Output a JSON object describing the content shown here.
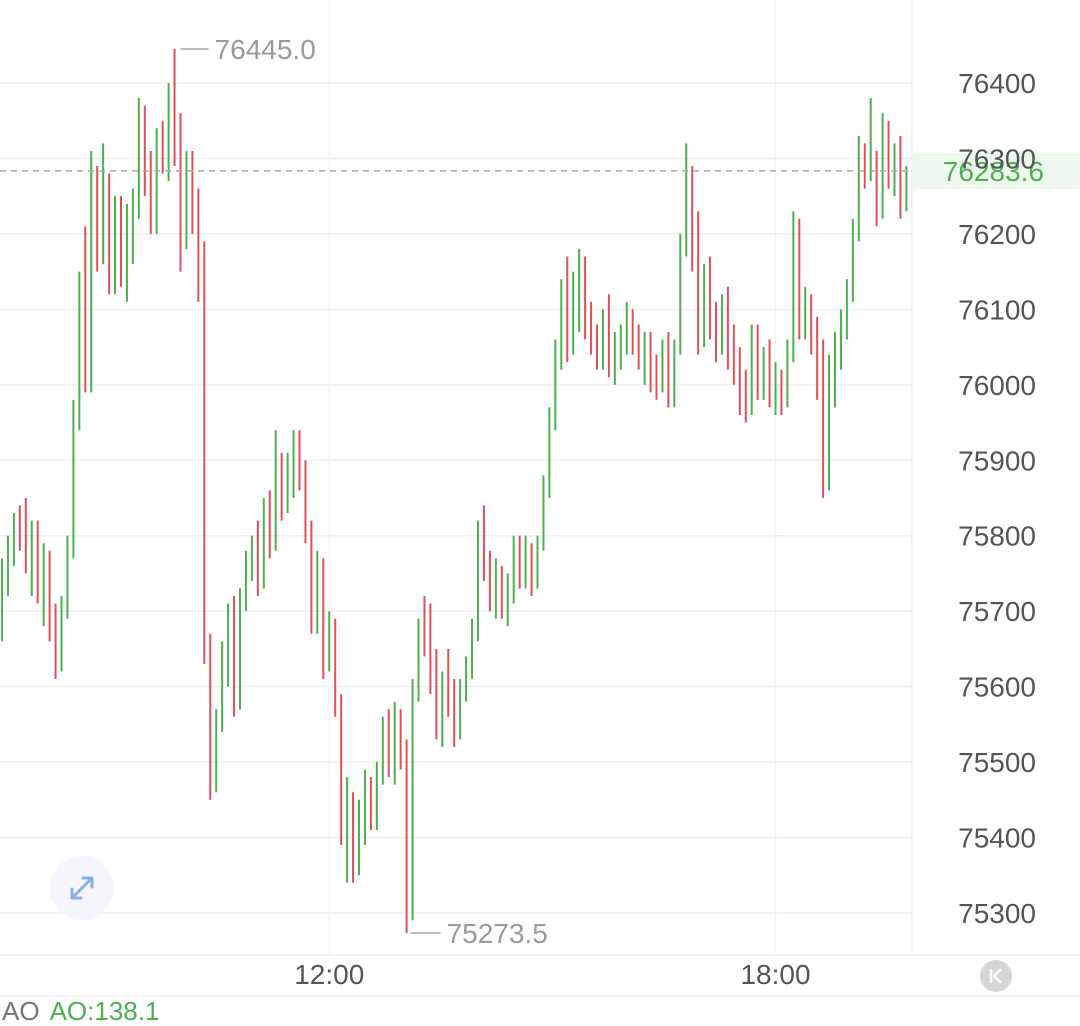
{
  "chart_data": {
    "type": "ohlc",
    "y_ticks": [
      "76400",
      "76300",
      "76200",
      "76100",
      "76000",
      "75900",
      "75800",
      "75700",
      "75600",
      "75500",
      "75400",
      "75300"
    ],
    "x_ticks": [
      {
        "label": "12:00",
        "index": 55
      },
      {
        "label": "18:00",
        "index": 130
      }
    ],
    "ylim": [
      75235,
      76500
    ],
    "high_marker": {
      "label": "76445.0",
      "value": 76445.0
    },
    "low_marker": {
      "label": "75273.5",
      "value": 75273.5
    },
    "last_price": {
      "label": "76283.6",
      "value": 76283.6
    },
    "up_color": "#4caf50",
    "down_color": "#e0505a",
    "candles": [
      [
        75680,
        75770,
        75660,
        75750
      ],
      [
        75750,
        75800,
        75720,
        75780
      ],
      [
        75780,
        75830,
        75760,
        75810
      ],
      [
        75810,
        75840,
        75780,
        75800
      ],
      [
        75800,
        75850,
        75750,
        75770
      ],
      [
        75770,
        75820,
        75720,
        75790
      ],
      [
        75790,
        75820,
        75710,
        75730
      ],
      [
        75730,
        75790,
        75680,
        75760
      ],
      [
        75760,
        75780,
        75660,
        75690
      ],
      [
        75690,
        75710,
        75610,
        75640
      ],
      [
        75640,
        75720,
        75620,
        75700
      ],
      [
        75700,
        75800,
        75690,
        75790
      ],
      [
        75790,
        75980,
        75770,
        75960
      ],
      [
        75960,
        76150,
        75940,
        76130
      ],
      [
        76130,
        76210,
        75990,
        76010
      ],
      [
        76010,
        76310,
        75990,
        76280
      ],
      [
        76280,
        76290,
        76150,
        76180
      ],
      [
        76180,
        76320,
        76160,
        76270
      ],
      [
        76270,
        76280,
        76120,
        76160
      ],
      [
        76160,
        76250,
        76120,
        76200
      ],
      [
        76200,
        76250,
        76130,
        76150
      ],
      [
        76150,
        76240,
        76110,
        76190
      ],
      [
        76190,
        76260,
        76160,
        76240
      ],
      [
        76240,
        76380,
        76220,
        76360
      ],
      [
        76360,
        76370,
        76250,
        76280
      ],
      [
        76280,
        76310,
        76200,
        76230
      ],
      [
        76230,
        76340,
        76200,
        76320
      ],
      [
        76320,
        76350,
        76280,
        76300
      ],
      [
        76300,
        76400,
        76270,
        76380
      ],
      [
        76380,
        76445,
        76290,
        76330
      ],
      [
        76330,
        76360,
        76150,
        76190
      ],
      [
        76190,
        76310,
        76180,
        76270
      ],
      [
        76270,
        76310,
        76200,
        76210
      ],
      [
        76210,
        76260,
        76110,
        76130
      ],
      [
        76130,
        76190,
        75630,
        75650
      ],
      [
        75650,
        75670,
        75450,
        75480
      ],
      [
        75480,
        75570,
        75460,
        75560
      ],
      [
        75560,
        75660,
        75540,
        75640
      ],
      [
        75640,
        75710,
        75600,
        75690
      ],
      [
        75690,
        75720,
        75560,
        75580
      ],
      [
        75580,
        75730,
        75570,
        75710
      ],
      [
        75710,
        75780,
        75700,
        75760
      ],
      [
        75760,
        75800,
        75740,
        75790
      ],
      [
        75790,
        75820,
        75720,
        75740
      ],
      [
        75740,
        75850,
        75730,
        75830
      ],
      [
        75830,
        75860,
        75770,
        75790
      ],
      [
        75790,
        75940,
        75780,
        75900
      ],
      [
        75900,
        75910,
        75820,
        75850
      ],
      [
        75850,
        75910,
        75830,
        75880
      ],
      [
        75880,
        75940,
        75850,
        75920
      ],
      [
        75920,
        75940,
        75860,
        75880
      ],
      [
        75880,
        75900,
        75790,
        75810
      ],
      [
        75810,
        75820,
        75670,
        75690
      ],
      [
        75690,
        75780,
        75670,
        75760
      ],
      [
        75760,
        75770,
        75610,
        75640
      ],
      [
        75640,
        75700,
        75620,
        75680
      ],
      [
        75680,
        75690,
        75560,
        75570
      ],
      [
        75570,
        75590,
        75390,
        75410
      ],
      [
        75410,
        75480,
        75340,
        75440
      ],
      [
        75440,
        75460,
        75340,
        75360
      ],
      [
        75360,
        75450,
        75350,
        75430
      ],
      [
        75430,
        75490,
        75390,
        75460
      ],
      [
        75460,
        75480,
        75410,
        75420
      ],
      [
        75420,
        75500,
        75410,
        75490
      ],
      [
        75490,
        75560,
        75470,
        75540
      ],
      [
        75540,
        75570,
        75480,
        75500
      ],
      [
        75500,
        75580,
        75470,
        75560
      ],
      [
        75560,
        75570,
        75490,
        75510
      ],
      [
        75510,
        75530,
        75273.5,
        75300
      ],
      [
        75300,
        75610,
        75290,
        75590
      ],
      [
        75590,
        75690,
        75580,
        75670
      ],
      [
        75670,
        75720,
        75640,
        75660
      ],
      [
        75660,
        75710,
        75590,
        75610
      ],
      [
        75610,
        75650,
        75530,
        75550
      ],
      [
        75550,
        75620,
        75520,
        75600
      ],
      [
        75600,
        75650,
        75560,
        75580
      ],
      [
        75580,
        75610,
        75520,
        75540
      ],
      [
        75540,
        75610,
        75530,
        75590
      ],
      [
        75590,
        75640,
        75580,
        75620
      ],
      [
        75620,
        75690,
        75610,
        75680
      ],
      [
        75680,
        75820,
        75660,
        75800
      ],
      [
        75800,
        75840,
        75740,
        75760
      ],
      [
        75760,
        75780,
        75700,
        75720
      ],
      [
        75720,
        75770,
        75690,
        75740
      ],
      [
        75740,
        75760,
        75690,
        75710
      ],
      [
        75710,
        75750,
        75680,
        75730
      ],
      [
        75730,
        75800,
        75710,
        75780
      ],
      [
        75780,
        75800,
        75730,
        75750
      ],
      [
        75750,
        75800,
        75730,
        75760
      ],
      [
        75760,
        75790,
        75720,
        75740
      ],
      [
        75740,
        75800,
        75730,
        75790
      ],
      [
        75790,
        75880,
        75780,
        75860
      ],
      [
        75860,
        75970,
        75850,
        75950
      ],
      [
        75950,
        76060,
        75940,
        76040
      ],
      [
        76040,
        76140,
        76020,
        76120
      ],
      [
        76120,
        76170,
        76030,
        76050
      ],
      [
        76050,
        76150,
        76040,
        76120
      ],
      [
        76120,
        76180,
        76070,
        76160
      ],
      [
        76160,
        76170,
        76060,
        76080
      ],
      [
        76080,
        76110,
        76040,
        76060
      ],
      [
        76060,
        76080,
        76020,
        76040
      ],
      [
        76040,
        76100,
        76020,
        76080
      ],
      [
        76080,
        76120,
        76010,
        76030
      ],
      [
        76030,
        76070,
        76000,
        76050
      ],
      [
        76050,
        76080,
        76020,
        76060
      ],
      [
        76060,
        76110,
        76040,
        76090
      ],
      [
        76090,
        76100,
        76040,
        76060
      ],
      [
        76060,
        76080,
        76020,
        76030
      ],
      [
        76030,
        76070,
        76000,
        76050
      ],
      [
        76050,
        76070,
        75990,
        76010
      ],
      [
        76010,
        76040,
        75980,
        76000
      ],
      [
        76000,
        76060,
        75990,
        76040
      ],
      [
        76040,
        76070,
        75970,
        75990
      ],
      [
        75990,
        76060,
        75970,
        76050
      ],
      [
        76050,
        76200,
        76040,
        76180
      ],
      [
        76180,
        76320,
        76170,
        76250
      ],
      [
        76250,
        76290,
        76150,
        76180
      ],
      [
        76180,
        76230,
        76040,
        76060
      ],
      [
        76060,
        76160,
        76050,
        76130
      ],
      [
        76130,
        76170,
        76060,
        76080
      ],
      [
        76080,
        76110,
        76030,
        76060
      ],
      [
        76060,
        76120,
        76040,
        76100
      ],
      [
        76100,
        76130,
        76020,
        76040
      ],
      [
        76040,
        76080,
        76000,
        76020
      ],
      [
        76020,
        76050,
        75960,
        75980
      ],
      [
        75980,
        76020,
        75950,
        75970
      ],
      [
        75970,
        76080,
        75960,
        76060
      ],
      [
        76060,
        76080,
        75980,
        76000
      ],
      [
        76000,
        76050,
        75980,
        76030
      ],
      [
        76030,
        76060,
        75970,
        75990
      ],
      [
        75990,
        76030,
        75960,
        76010
      ],
      [
        76010,
        76020,
        75960,
        75980
      ],
      [
        75980,
        76060,
        75970,
        76040
      ],
      [
        76040,
        76230,
        76030,
        76210
      ],
      [
        76210,
        76220,
        76060,
        76080
      ],
      [
        76080,
        76130,
        76060,
        76110
      ],
      [
        76110,
        76120,
        76040,
        76060
      ],
      [
        76060,
        76090,
        75980,
        76000
      ],
      [
        76000,
        76060,
        75850,
        75870
      ],
      [
        75870,
        76040,
        75860,
        75980
      ],
      [
        75980,
        76070,
        75970,
        76040
      ],
      [
        76040,
        76100,
        76020,
        76080
      ],
      [
        76080,
        76140,
        76060,
        76120
      ],
      [
        76120,
        76220,
        76110,
        76200
      ],
      [
        76200,
        76330,
        76190,
        76310
      ],
      [
        76310,
        76320,
        76260,
        76280
      ],
      [
        76280,
        76380,
        76270,
        76300
      ],
      [
        76300,
        76310,
        76210,
        76230
      ],
      [
        76230,
        76360,
        76220,
        76340
      ],
      [
        76340,
        76350,
        76260,
        76270
      ],
      [
        76270,
        76320,
        76250,
        76300
      ],
      [
        76300,
        76330,
        76220,
        76250
      ],
      [
        76250,
        76290,
        76230,
        76283.6
      ]
    ]
  },
  "indicator": {
    "name": "AO",
    "value": "AO:138.1"
  },
  "icons": {
    "expand": "expand-arrows-icon",
    "back_to_latest": "back-to-latest-icon"
  }
}
